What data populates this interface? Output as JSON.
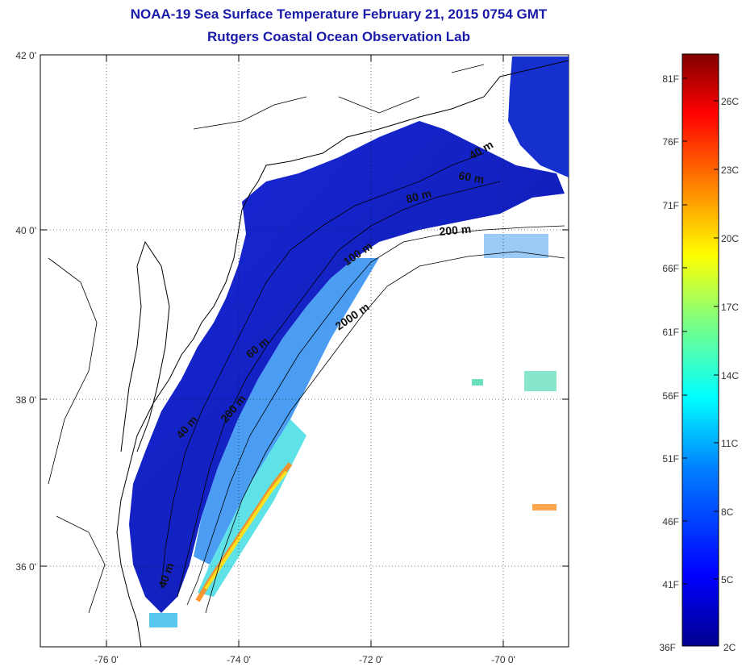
{
  "title": "NOAA-19 Sea Surface Temperature February 21, 2015 0754 GMT",
  "subtitle": "Rutgers Coastal Ocean Observation Lab",
  "map": {
    "lat_ticks": [
      "42 0'",
      "40 0'",
      "38 0'",
      "36 0'"
    ],
    "lon_ticks": [
      "-76 0'",
      "-74 0'",
      "-72 0'",
      "-70 0'"
    ],
    "isobath_labels": [
      "40 m",
      "60 m",
      "80 m",
      "200 m",
      "100 m",
      "2000 m",
      "60 m",
      "40 m",
      "200 m",
      "40 m"
    ]
  },
  "colorbar": {
    "fahrenheit_labels": [
      "81F",
      "76F",
      "71F",
      "66F",
      "61F",
      "56F",
      "51F",
      "46F",
      "41F",
      "36F"
    ],
    "celsius_labels": [
      "26C",
      "23C",
      "20C",
      "17C",
      "14C",
      "11C",
      "8C",
      "5C",
      "2C"
    ],
    "colors": [
      "#00008f",
      "#0000ff",
      "#0080ff",
      "#00ffff",
      "#80ff80",
      "#ffff00",
      "#ff8000",
      "#ff0000",
      "#800000"
    ]
  }
}
